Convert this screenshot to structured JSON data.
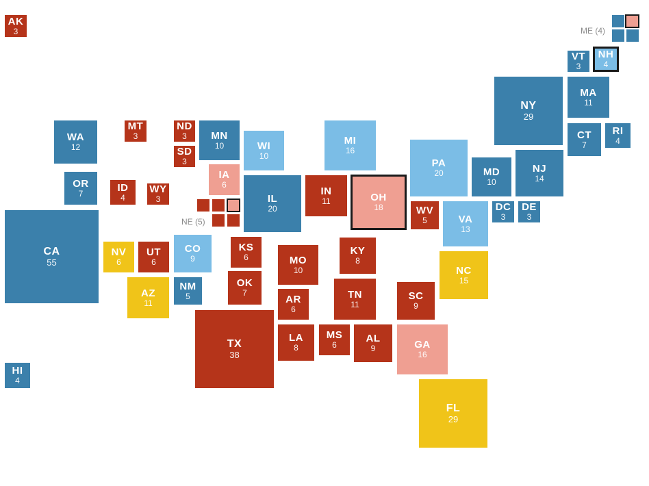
{
  "colors": {
    "dark_blue": "#3b80ab",
    "light_blue": "#7bbde6",
    "dark_red": "#b5341a",
    "light_red": "#ef9f92",
    "yellow": "#f0c419"
  },
  "states": {
    "AK": {
      "abbr": "AK",
      "votes": "3",
      "status": "dark_red"
    },
    "HI": {
      "abbr": "HI",
      "votes": "4",
      "status": "dark_blue"
    },
    "WA": {
      "abbr": "WA",
      "votes": "12",
      "status": "dark_blue"
    },
    "OR": {
      "abbr": "OR",
      "votes": "7",
      "status": "dark_blue"
    },
    "CA": {
      "abbr": "CA",
      "votes": "55",
      "status": "dark_blue"
    },
    "NV": {
      "abbr": "NV",
      "votes": "6",
      "status": "yellow"
    },
    "ID": {
      "abbr": "ID",
      "votes": "4",
      "status": "dark_red"
    },
    "MT": {
      "abbr": "MT",
      "votes": "3",
      "status": "dark_red"
    },
    "WY": {
      "abbr": "WY",
      "votes": "3",
      "status": "dark_red"
    },
    "UT": {
      "abbr": "UT",
      "votes": "6",
      "status": "dark_red"
    },
    "AZ": {
      "abbr": "AZ",
      "votes": "11",
      "status": "yellow"
    },
    "CO": {
      "abbr": "CO",
      "votes": "9",
      "status": "light_blue"
    },
    "NM": {
      "abbr": "NM",
      "votes": "5",
      "status": "dark_blue"
    },
    "ND": {
      "abbr": "ND",
      "votes": "3",
      "status": "dark_red"
    },
    "SD": {
      "abbr": "SD",
      "votes": "3",
      "status": "dark_red"
    },
    "KS": {
      "abbr": "KS",
      "votes": "6",
      "status": "dark_red"
    },
    "OK": {
      "abbr": "OK",
      "votes": "7",
      "status": "dark_red"
    },
    "TX": {
      "abbr": "TX",
      "votes": "38",
      "status": "dark_red"
    },
    "MN": {
      "abbr": "MN",
      "votes": "10",
      "status": "dark_blue"
    },
    "IA": {
      "abbr": "IA",
      "votes": "6",
      "status": "light_red"
    },
    "MO": {
      "abbr": "MO",
      "votes": "10",
      "status": "dark_red"
    },
    "AR": {
      "abbr": "AR",
      "votes": "6",
      "status": "dark_red"
    },
    "LA": {
      "abbr": "LA",
      "votes": "8",
      "status": "dark_red"
    },
    "WI": {
      "abbr": "WI",
      "votes": "10",
      "status": "light_blue"
    },
    "IL": {
      "abbr": "IL",
      "votes": "20",
      "status": "dark_blue"
    },
    "MI": {
      "abbr": "MI",
      "votes": "16",
      "status": "light_blue"
    },
    "IN": {
      "abbr": "IN",
      "votes": "11",
      "status": "dark_red"
    },
    "OH": {
      "abbr": "OH",
      "votes": "18",
      "status": "light_red",
      "highlight": true
    },
    "KY": {
      "abbr": "KY",
      "votes": "8",
      "status": "dark_red"
    },
    "TN": {
      "abbr": "TN",
      "votes": "11",
      "status": "dark_red"
    },
    "MS": {
      "abbr": "MS",
      "votes": "6",
      "status": "dark_red"
    },
    "AL": {
      "abbr": "AL",
      "votes": "9",
      "status": "dark_red"
    },
    "GA": {
      "abbr": "GA",
      "votes": "16",
      "status": "light_red"
    },
    "FL": {
      "abbr": "FL",
      "votes": "29",
      "status": "yellow"
    },
    "SC": {
      "abbr": "SC",
      "votes": "9",
      "status": "dark_red"
    },
    "NC": {
      "abbr": "NC",
      "votes": "15",
      "status": "yellow"
    },
    "VA": {
      "abbr": "VA",
      "votes": "13",
      "status": "light_blue"
    },
    "WV": {
      "abbr": "WV",
      "votes": "5",
      "status": "dark_red"
    },
    "PA": {
      "abbr": "PA",
      "votes": "20",
      "status": "light_blue"
    },
    "MD": {
      "abbr": "MD",
      "votes": "10",
      "status": "dark_blue"
    },
    "DC": {
      "abbr": "DC",
      "votes": "3",
      "status": "dark_blue"
    },
    "DE": {
      "abbr": "DE",
      "votes": "3",
      "status": "dark_blue"
    },
    "NJ": {
      "abbr": "NJ",
      "votes": "14",
      "status": "dark_blue"
    },
    "NY": {
      "abbr": "NY",
      "votes": "29",
      "status": "dark_blue"
    },
    "CT": {
      "abbr": "CT",
      "votes": "7",
      "status": "dark_blue"
    },
    "RI": {
      "abbr": "RI",
      "votes": "4",
      "status": "dark_blue"
    },
    "MA": {
      "abbr": "MA",
      "votes": "11",
      "status": "dark_blue"
    },
    "VT": {
      "abbr": "VT",
      "votes": "3",
      "status": "dark_blue"
    },
    "NH": {
      "abbr": "NH",
      "votes": "4",
      "status": "light_blue",
      "highlight": true
    }
  },
  "split_states": {
    "NE": {
      "label": "NE (5)",
      "districts": [
        {
          "status": "dark_red",
          "highlight": false
        },
        {
          "status": "dark_red",
          "highlight": false
        },
        {
          "status": "light_red",
          "highlight": true
        },
        {
          "status": "dark_red",
          "highlight": false
        },
        {
          "status": "dark_red",
          "highlight": false
        }
      ]
    },
    "ME": {
      "label": "ME (4)",
      "districts": [
        {
          "status": "dark_blue",
          "highlight": false
        },
        {
          "status": "light_red",
          "highlight": true
        },
        {
          "status": "dark_blue",
          "highlight": false
        },
        {
          "status": "dark_blue",
          "highlight": false
        }
      ]
    }
  }
}
